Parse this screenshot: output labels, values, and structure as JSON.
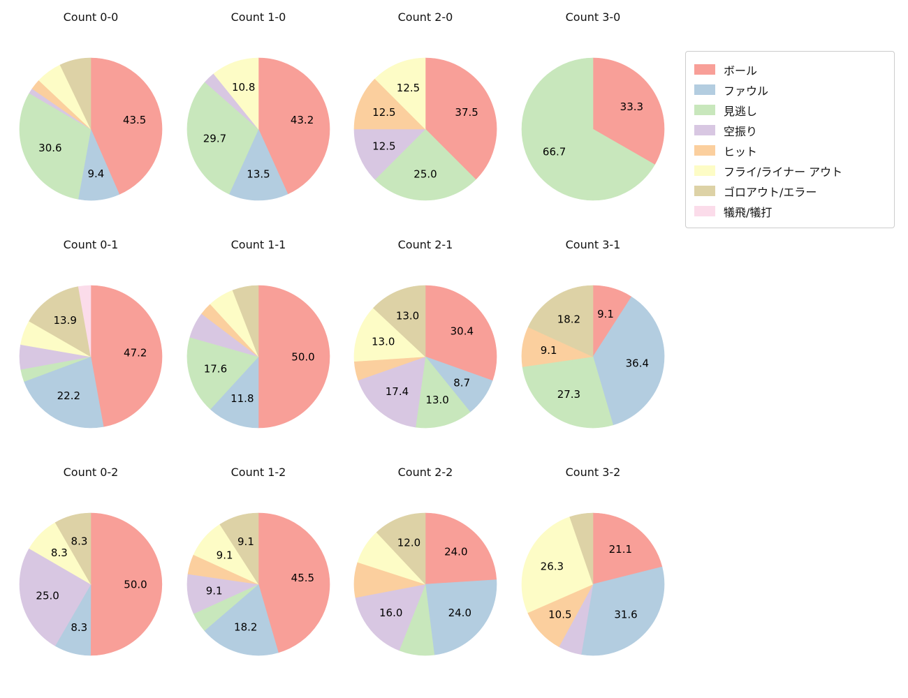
{
  "figure": {
    "background_color": "#ffffff"
  },
  "legend": {
    "position": "upper right",
    "entries": [
      {
        "label": "ボール",
        "slug": "ball",
        "color": "#f89f98"
      },
      {
        "label": "ファウル",
        "slug": "foul",
        "color": "#b3cde0"
      },
      {
        "label": "見逃し",
        "slug": "called-strike",
        "color": "#c8e7bc"
      },
      {
        "label": "空振り",
        "slug": "swinging-strike",
        "color": "#d8c7e2"
      },
      {
        "label": "ヒット",
        "slug": "hit",
        "color": "#fbcf9e"
      },
      {
        "label": "フライ/ライナー アウト",
        "slug": "fly-liner-out",
        "color": "#fdfcc6"
      },
      {
        "label": "ゴロアウト/エラー",
        "slug": "groundout-error",
        "color": "#ddd2a6"
      },
      {
        "label": "犠飛/犠打",
        "slug": "sacrifice",
        "color": "#fbdcea"
      }
    ]
  },
  "chart_data": [
    {
      "type": "pie",
      "title": "Count 0-0",
      "start_angle": "top",
      "direction": "clockwise",
      "slices": [
        {
          "category": "ボール",
          "value": 43.5,
          "pct_label": "43.5"
        },
        {
          "category": "ファウル",
          "value": 9.4,
          "pct_label": "9.4"
        },
        {
          "category": "見逃し",
          "value": 30.6,
          "pct_label": "30.6"
        },
        {
          "category": "空振り",
          "value": 1.2,
          "pct_label": ""
        },
        {
          "category": "ヒット",
          "value": 2.4,
          "pct_label": ""
        },
        {
          "category": "フライ/ライナー アウト",
          "value": 5.9,
          "pct_label": ""
        },
        {
          "category": "ゴロアウト/エラー",
          "value": 7.1,
          "pct_label": ""
        }
      ]
    },
    {
      "type": "pie",
      "title": "Count 1-0",
      "start_angle": "top",
      "direction": "clockwise",
      "slices": [
        {
          "category": "ボール",
          "value": 43.2,
          "pct_label": "43.2"
        },
        {
          "category": "ファウル",
          "value": 13.5,
          "pct_label": "13.5"
        },
        {
          "category": "見逃し",
          "value": 29.7,
          "pct_label": "29.7"
        },
        {
          "category": "空振り",
          "value": 2.7,
          "pct_label": ""
        },
        {
          "category": "フライ/ライナー アウト",
          "value": 10.8,
          "pct_label": "10.8"
        }
      ]
    },
    {
      "type": "pie",
      "title": "Count 2-0",
      "start_angle": "top",
      "direction": "clockwise",
      "slices": [
        {
          "category": "ボール",
          "value": 37.5,
          "pct_label": "37.5"
        },
        {
          "category": "見逃し",
          "value": 25.0,
          "pct_label": "25.0"
        },
        {
          "category": "空振り",
          "value": 12.5,
          "pct_label": "12.5"
        },
        {
          "category": "ヒット",
          "value": 12.5,
          "pct_label": "12.5"
        },
        {
          "category": "フライ/ライナー アウト",
          "value": 12.5,
          "pct_label": "12.5"
        }
      ]
    },
    {
      "type": "pie",
      "title": "Count 3-0",
      "start_angle": "top",
      "direction": "clockwise",
      "slices": [
        {
          "category": "ボール",
          "value": 33.3,
          "pct_label": "33.3"
        },
        {
          "category": "見逃し",
          "value": 66.7,
          "pct_label": "66.7"
        }
      ]
    },
    {
      "type": "pie",
      "title": "Count 0-1",
      "start_angle": "top",
      "direction": "clockwise",
      "slices": [
        {
          "category": "ボール",
          "value": 47.2,
          "pct_label": "47.2"
        },
        {
          "category": "ファウル",
          "value": 22.2,
          "pct_label": "22.2"
        },
        {
          "category": "見逃し",
          "value": 2.8,
          "pct_label": ""
        },
        {
          "category": "空振り",
          "value": 5.6,
          "pct_label": ""
        },
        {
          "category": "フライ/ライナー アウト",
          "value": 5.6,
          "pct_label": ""
        },
        {
          "category": "ゴロアウト/エラー",
          "value": 13.9,
          "pct_label": "13.9"
        },
        {
          "category": "犠飛/犠打",
          "value": 2.8,
          "pct_label": ""
        }
      ]
    },
    {
      "type": "pie",
      "title": "Count 1-1",
      "start_angle": "top",
      "direction": "clockwise",
      "slices": [
        {
          "category": "ボール",
          "value": 50.0,
          "pct_label": "50.0"
        },
        {
          "category": "ファウル",
          "value": 11.8,
          "pct_label": "11.8"
        },
        {
          "category": "見逃し",
          "value": 17.6,
          "pct_label": "17.6"
        },
        {
          "category": "空振り",
          "value": 5.9,
          "pct_label": ""
        },
        {
          "category": "ヒット",
          "value": 2.9,
          "pct_label": ""
        },
        {
          "category": "フライ/ライナー アウト",
          "value": 5.9,
          "pct_label": ""
        },
        {
          "category": "ゴロアウト/エラー",
          "value": 5.9,
          "pct_label": ""
        }
      ]
    },
    {
      "type": "pie",
      "title": "Count 2-1",
      "start_angle": "top",
      "direction": "clockwise",
      "slices": [
        {
          "category": "ボール",
          "value": 30.4,
          "pct_label": "30.4"
        },
        {
          "category": "ファウル",
          "value": 8.7,
          "pct_label": "8.7"
        },
        {
          "category": "見逃し",
          "value": 13.0,
          "pct_label": "13.0"
        },
        {
          "category": "空振り",
          "value": 17.4,
          "pct_label": "17.4"
        },
        {
          "category": "ヒット",
          "value": 4.3,
          "pct_label": ""
        },
        {
          "category": "フライ/ライナー アウト",
          "value": 13.0,
          "pct_label": "13.0"
        },
        {
          "category": "ゴロアウト/エラー",
          "value": 13.0,
          "pct_label": "13.0"
        }
      ]
    },
    {
      "type": "pie",
      "title": "Count 3-1",
      "start_angle": "top",
      "direction": "clockwise",
      "slices": [
        {
          "category": "ボール",
          "value": 9.1,
          "pct_label": "9.1"
        },
        {
          "category": "ファウル",
          "value": 36.4,
          "pct_label": "36.4"
        },
        {
          "category": "見逃し",
          "value": 27.3,
          "pct_label": "27.3"
        },
        {
          "category": "ヒット",
          "value": 9.1,
          "pct_label": "9.1"
        },
        {
          "category": "ゴロアウト/エラー",
          "value": 18.2,
          "pct_label": "18.2"
        }
      ]
    },
    {
      "type": "pie",
      "title": "Count 0-2",
      "start_angle": "top",
      "direction": "clockwise",
      "slices": [
        {
          "category": "ボール",
          "value": 50.0,
          "pct_label": "50.0"
        },
        {
          "category": "ファウル",
          "value": 8.3,
          "pct_label": "8.3"
        },
        {
          "category": "空振り",
          "value": 25.0,
          "pct_label": "25.0"
        },
        {
          "category": "フライ/ライナー アウト",
          "value": 8.3,
          "pct_label": "8.3"
        },
        {
          "category": "ゴロアウト/エラー",
          "value": 8.3,
          "pct_label": "8.3"
        }
      ]
    },
    {
      "type": "pie",
      "title": "Count 1-2",
      "start_angle": "top",
      "direction": "clockwise",
      "slices": [
        {
          "category": "ボール",
          "value": 45.5,
          "pct_label": "45.5"
        },
        {
          "category": "ファウル",
          "value": 18.2,
          "pct_label": "18.2"
        },
        {
          "category": "見逃し",
          "value": 4.5,
          "pct_label": ""
        },
        {
          "category": "空振り",
          "value": 9.1,
          "pct_label": "9.1"
        },
        {
          "category": "ヒット",
          "value": 4.5,
          "pct_label": ""
        },
        {
          "category": "フライ/ライナー アウト",
          "value": 9.1,
          "pct_label": "9.1"
        },
        {
          "category": "ゴロアウト/エラー",
          "value": 9.1,
          "pct_label": "9.1"
        }
      ]
    },
    {
      "type": "pie",
      "title": "Count 2-2",
      "start_angle": "top",
      "direction": "clockwise",
      "slices": [
        {
          "category": "ボール",
          "value": 24.0,
          "pct_label": "24.0"
        },
        {
          "category": "ファウル",
          "value": 24.0,
          "pct_label": "24.0"
        },
        {
          "category": "見逃し",
          "value": 8.0,
          "pct_label": ""
        },
        {
          "category": "空振り",
          "value": 16.0,
          "pct_label": "16.0"
        },
        {
          "category": "ヒット",
          "value": 8.0,
          "pct_label": ""
        },
        {
          "category": "フライ/ライナー アウト",
          "value": 8.0,
          "pct_label": ""
        },
        {
          "category": "ゴロアウト/エラー",
          "value": 12.0,
          "pct_label": "12.0"
        }
      ]
    },
    {
      "type": "pie",
      "title": "Count 3-2",
      "start_angle": "top",
      "direction": "clockwise",
      "slices": [
        {
          "category": "ボール",
          "value": 21.1,
          "pct_label": "21.1"
        },
        {
          "category": "ファウル",
          "value": 31.6,
          "pct_label": "31.6"
        },
        {
          "category": "空振り",
          "value": 5.3,
          "pct_label": ""
        },
        {
          "category": "ヒット",
          "value": 10.5,
          "pct_label": "10.5"
        },
        {
          "category": "フライ/ライナー アウト",
          "value": 26.3,
          "pct_label": "26.3"
        },
        {
          "category": "ゴロアウト/エラー",
          "value": 5.3,
          "pct_label": ""
        }
      ]
    }
  ]
}
